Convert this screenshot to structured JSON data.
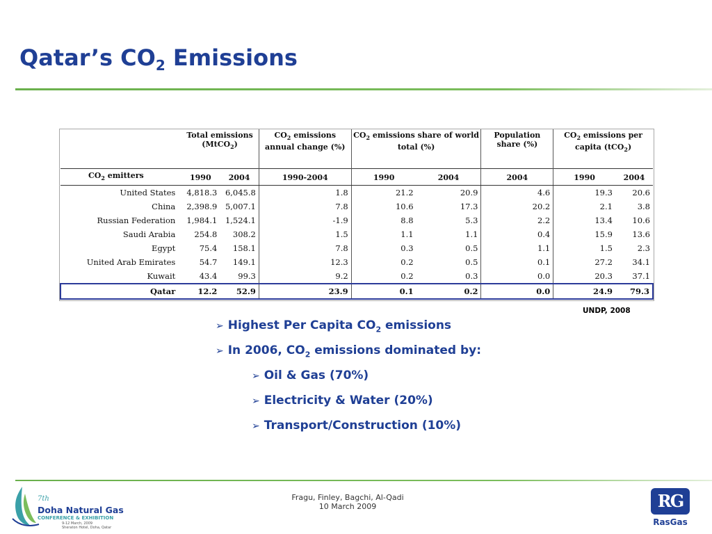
{
  "slide": {
    "title": "Qatar’s CO",
    "title_sub": "2",
    "title_rest": " Emissions"
  },
  "table": {
    "headers": {
      "total": "Total emissions (MtCO",
      "total_sub": "2",
      "total_end": ")",
      "annual_pre": "CO",
      "annual_sub": "2",
      "annual_rest": " emissions annual change (%)",
      "share_pre": "CO",
      "share_sub": "2",
      "share_rest": " emissions share of world total (%)",
      "pop": "Population share (%)",
      "percap_pre": "CO",
      "percap_sub": "2",
      "percap_rest": " emissions per capita (tCO",
      "percap_sub2": "2",
      "percap_end": ")"
    },
    "subheaders": {
      "emitters_pre": "CO",
      "emitters_sub": "2",
      "emitters_rest": " emitters",
      "cols": [
        "1990",
        "2004",
        "1990-2004",
        "1990",
        "2004",
        "2004",
        "1990",
        "2004"
      ]
    },
    "rows": [
      [
        "United States",
        "4,818.3",
        "6,045.8",
        "1.8",
        "21.2",
        "20.9",
        "4.6",
        "19.3",
        "20.6"
      ],
      [
        "China",
        "2,398.9",
        "5,007.1",
        "7.8",
        "10.6",
        "17.3",
        "20.2",
        "2.1",
        "3.8"
      ],
      [
        "Russian Federation",
        "1,984.1",
        "1,524.1",
        "-1.9",
        "8.8",
        "5.3",
        "2.2",
        "13.4",
        "10.6"
      ],
      [
        "Saudi Arabia",
        "254.8",
        "308.2",
        "1.5",
        "1.1",
        "1.1",
        "0.4",
        "15.9",
        "13.6"
      ],
      [
        "Egypt",
        "75.4",
        "158.1",
        "7.8",
        "0.3",
        "0.5",
        "1.1",
        "1.5",
        "2.3"
      ],
      [
        "United Arab Emirates",
        "54.7",
        "149.1",
        "12.3",
        "0.2",
        "0.5",
        "0.1",
        "27.2",
        "34.1"
      ],
      [
        "Kuwait",
        "43.4",
        "99.3",
        "9.2",
        "0.2",
        "0.3",
        "0.0",
        "20.3",
        "37.1"
      ],
      [
        "Qatar",
        "12.2",
        "52.9",
        "23.9",
        "0.1",
        "0.2",
        "0.0",
        "24.9",
        "79.3"
      ]
    ]
  },
  "source": "UNDP, 2008",
  "bullets": [
    {
      "pre": "Highest Per Capita CO",
      "sub": "2",
      "post": " emissions"
    },
    {
      "pre": "In 2006, CO",
      "sub": "2",
      "post": " emissions dominated by:"
    },
    {
      "pre": "Oil & Gas (70%)"
    },
    {
      "pre": "Electricity & Water (20%)"
    },
    {
      "pre": "Transport/Construction (10%)"
    }
  ],
  "footer": {
    "authors": "Fragu, Finley, Bagchi, Al-Qadi",
    "date": "10 March 2009"
  },
  "logos": {
    "left_line1": "Doha Natural Gas",
    "left_line2": "CONFERENCE & EXHIBITION",
    "left_line3": "9-12 March, 2009",
    "left_line4": "Sheraton Hotel, Doha, Qatar",
    "left_mark": "7th",
    "right_mark": "RG",
    "right_name": "RasGas"
  },
  "colors": {
    "title_blue": "#1f3f95",
    "rule_green": "#6ab04c",
    "highlight_border": "#2b3a99"
  },
  "icons": {
    "bullet": "arrow-bullet-icon",
    "left_logo": "flame-logo-icon",
    "right_logo": "rasgas-logo-icon"
  }
}
